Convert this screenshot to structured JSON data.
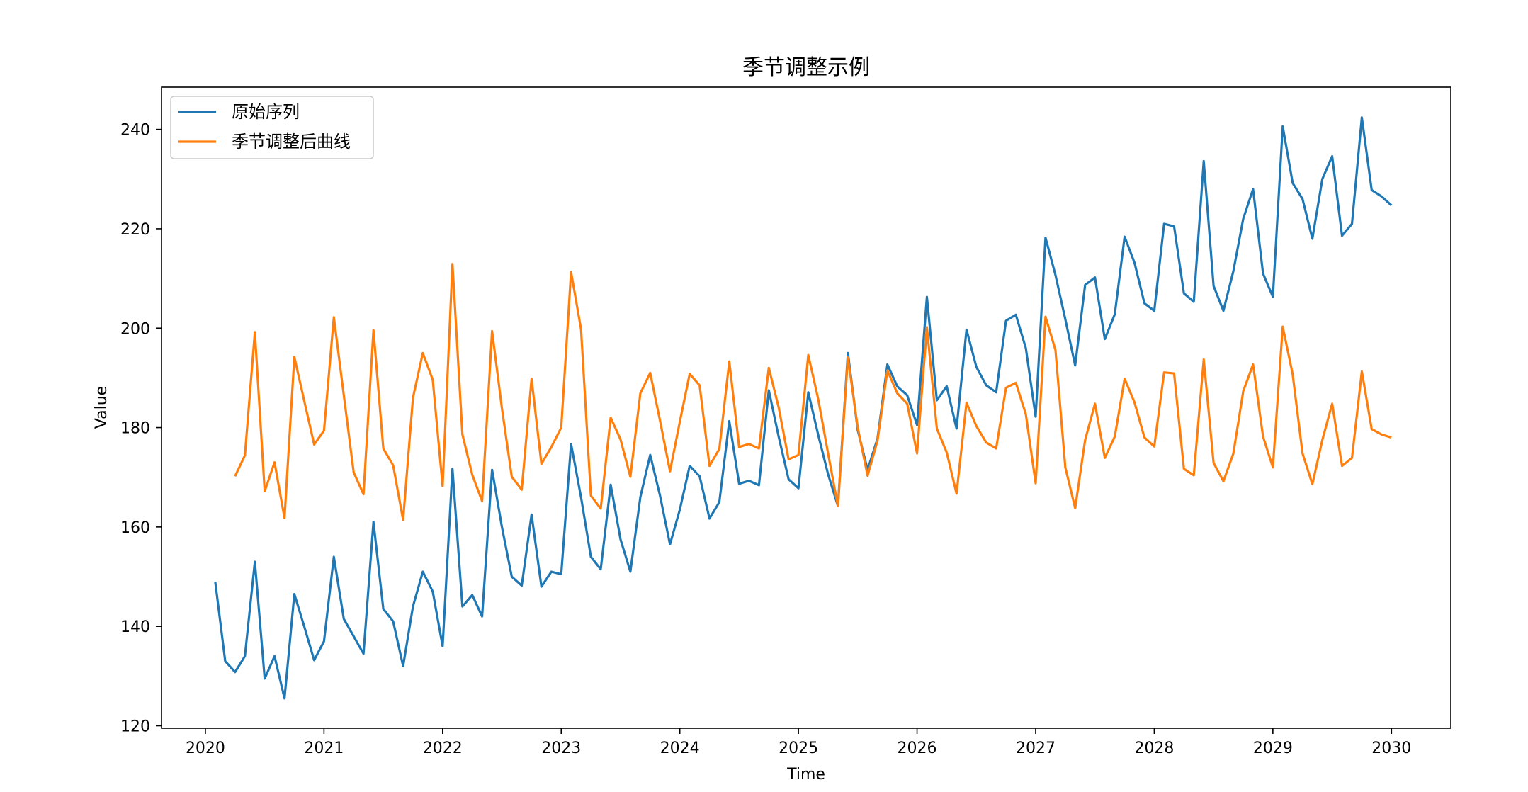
{
  "chart_data": {
    "type": "line",
    "title": "季节调整示例",
    "xlabel": "Time",
    "ylabel": "Value",
    "xlim": [
      2019.63,
      2030.5
    ],
    "ylim": [
      119.5,
      248.5
    ],
    "x_ticks": [
      2020,
      2021,
      2022,
      2023,
      2024,
      2025,
      2026,
      2027,
      2028,
      2029,
      2030
    ],
    "x_tick_labels": [
      "2020",
      "2021",
      "2022",
      "2023",
      "2024",
      "2025",
      "2026",
      "2027",
      "2028",
      "2029",
      "2030"
    ],
    "y_ticks": [
      120,
      140,
      160,
      180,
      200,
      220,
      240
    ],
    "y_tick_labels": [
      "120",
      "140",
      "160",
      "180",
      "200",
      "220",
      "240"
    ],
    "grid": false,
    "legend_position": "top-left",
    "series": [
      {
        "name": "原始序列",
        "color": "#1f77b4",
        "x": [
          2020.083,
          2020.167,
          2020.25,
          2020.333,
          2020.417,
          2020.5,
          2020.583,
          2020.667,
          2020.75,
          2020.833,
          2020.917,
          2021.0,
          2021.083,
          2021.167,
          2021.25,
          2021.333,
          2021.417,
          2021.5,
          2021.583,
          2021.667,
          2021.75,
          2021.833,
          2021.917,
          2022.0,
          2022.083,
          2022.167,
          2022.25,
          2022.333,
          2022.417,
          2022.5,
          2022.583,
          2022.667,
          2022.75,
          2022.833,
          2022.917,
          2023.0,
          2023.083,
          2023.167,
          2023.25,
          2023.333,
          2023.417,
          2023.5,
          2023.583,
          2023.667,
          2023.75,
          2023.833,
          2023.917,
          2024.0,
          2024.083,
          2024.167,
          2024.25,
          2024.333,
          2024.417,
          2024.5,
          2024.583,
          2024.667,
          2024.75,
          2024.833,
          2024.917,
          2025.0,
          2025.083,
          2025.167,
          2025.25,
          2025.333,
          2025.417,
          2025.5,
          2025.583,
          2025.667,
          2025.75,
          2025.833,
          2025.917,
          2026.0,
          2026.083,
          2026.167,
          2026.25,
          2026.333,
          2026.417,
          2026.5,
          2026.583,
          2026.667,
          2026.75,
          2026.833,
          2026.917,
          2027.0,
          2027.083,
          2027.167,
          2027.25,
          2027.333,
          2027.417,
          2027.5,
          2027.583,
          2027.667,
          2027.75,
          2027.833,
          2027.917,
          2028.0,
          2028.083,
          2028.167,
          2028.25,
          2028.333,
          2028.417,
          2028.5,
          2028.583,
          2028.667,
          2028.75,
          2028.833,
          2028.917,
          2029.0,
          2029.083,
          2029.167,
          2029.25,
          2029.333,
          2029.417,
          2029.5,
          2029.583,
          2029.667,
          2029.75,
          2029.833,
          2029.917,
          2030.0
        ],
        "values": [
          149,
          133,
          130.8,
          134,
          153,
          129.5,
          134,
          125.5,
          146.5,
          140,
          133.2,
          137,
          154,
          141.5,
          138,
          134.5,
          161,
          143.5,
          141,
          132,
          144,
          151,
          147,
          136,
          171.7,
          144,
          146.3,
          142,
          171.5,
          160,
          150,
          148.2,
          162.5,
          148,
          151,
          150.5,
          176.7,
          166,
          154,
          151.5,
          168.5,
          157.5,
          151,
          166,
          174.5,
          166.3,
          156.5,
          163.5,
          172.3,
          170.2,
          161.7,
          165,
          181.3,
          168.7,
          169.3,
          168.4,
          187.5,
          178.2,
          169.6,
          167.8,
          187.1,
          178.5,
          170.6,
          164.2,
          195,
          179.5,
          171.5,
          177.8,
          192.7,
          188.3,
          186.5,
          180.5,
          206.3,
          185.5,
          188.3,
          179.8,
          199.7,
          192.2,
          188.5,
          187.1,
          201.5,
          202.7,
          196,
          182.2,
          218.2,
          210.7,
          201.8,
          192.5,
          208.7,
          210.2,
          197.8,
          202.8,
          218.4,
          213.2,
          205,
          203.5,
          221,
          220.5,
          207,
          205.3,
          233.6,
          208.5,
          203.5,
          211.5,
          222,
          228,
          211,
          206.3,
          240.6,
          229.2,
          226,
          218,
          230,
          234.6,
          218.6,
          221,
          242.4,
          227.8,
          226.5,
          224.7
        ]
      },
      {
        "name": "季节调整后曲线",
        "color": "#ff7f0e",
        "x": [
          2020.25,
          2020.333,
          2020.417,
          2020.5,
          2020.583,
          2020.667,
          2020.75,
          2020.833,
          2020.917,
          2021.0,
          2021.083,
          2021.167,
          2021.25,
          2021.333,
          2021.417,
          2021.5,
          2021.583,
          2021.667,
          2021.75,
          2021.833,
          2021.917,
          2022.0,
          2022.083,
          2022.167,
          2022.25,
          2022.333,
          2022.417,
          2022.5,
          2022.583,
          2022.667,
          2022.75,
          2022.833,
          2022.917,
          2023.0,
          2023.083,
          2023.167,
          2023.25,
          2023.333,
          2023.417,
          2023.5,
          2023.583,
          2023.667,
          2023.75,
          2023.833,
          2023.917,
          2024.0,
          2024.083,
          2024.167,
          2024.25,
          2024.333,
          2024.417,
          2024.5,
          2024.583,
          2024.667,
          2024.75,
          2024.833,
          2024.917,
          2025.0,
          2025.083,
          2025.167,
          2025.25,
          2025.333,
          2025.417,
          2025.5,
          2025.583,
          2025.667,
          2025.75,
          2025.833,
          2025.917,
          2026.0,
          2026.083,
          2026.167,
          2026.25,
          2026.333,
          2026.417,
          2026.5,
          2026.583,
          2026.667,
          2026.75,
          2026.833,
          2026.917,
          2027.0,
          2027.083,
          2027.167,
          2027.25,
          2027.333,
          2027.417,
          2027.5,
          2027.583,
          2027.667,
          2027.75,
          2027.833,
          2027.917,
          2028.0,
          2028.083,
          2028.167,
          2028.25,
          2028.333,
          2028.417,
          2028.5,
          2028.583,
          2028.667,
          2028.75,
          2028.833,
          2028.917,
          2029.0,
          2029.083,
          2029.167,
          2029.25,
          2029.333,
          2029.417,
          2029.5,
          2029.583,
          2029.667,
          2029.75,
          2029.833,
          2029.917,
          2030.0
        ],
        "values": [
          170.2,
          174.4,
          199.2,
          167.2,
          173,
          161.8,
          194.2,
          185.4,
          176.6,
          179.4,
          202.2,
          186.5,
          171,
          166.6,
          199.6,
          175.8,
          172.4,
          161.4,
          186,
          195,
          189.6,
          168.2,
          212.9,
          178.6,
          170.5,
          165.2,
          199.4,
          183.9,
          170.1,
          167.5,
          189.8,
          172.7,
          176.1,
          180,
          211.3,
          199.8,
          166.3,
          163.7,
          182,
          177.6,
          170.1,
          186.9,
          191,
          181.4,
          171.2,
          181.2,
          190.8,
          188.5,
          172.3,
          175.7,
          193.3,
          176.1,
          176.7,
          175.8,
          192,
          184.1,
          173.6,
          174.5,
          194.6,
          185.7,
          174.8,
          164.2,
          194.1,
          180,
          170.3,
          177.4,
          191.5,
          186.9,
          184.8,
          174.8,
          200.2,
          179.8,
          175,
          166.7,
          185,
          180.3,
          177,
          175.8,
          188,
          189,
          182.7,
          168.8,
          202.3,
          195.6,
          172,
          163.8,
          177.5,
          184.8,
          173.9,
          178.2,
          189.8,
          185.1,
          178,
          176.2,
          191.1,
          190.9,
          171.7,
          170.4,
          193.7,
          172.9,
          169.2,
          174.8,
          187.3,
          192.7,
          178.2,
          172,
          200.3,
          190.7,
          174.8,
          168.6,
          177.5,
          184.8,
          172.3,
          173.9,
          191.3,
          179.7,
          178.6,
          178
        ]
      }
    ]
  }
}
